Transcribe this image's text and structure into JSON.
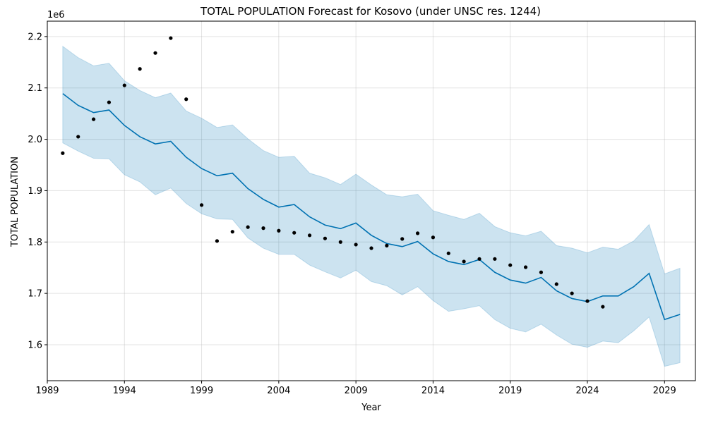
{
  "chart_data": {
    "type": "line",
    "title": "TOTAL POPULATION Forecast for Kosovo (under UNSC res. 1244)",
    "xlabel": "Year",
    "ylabel": "TOTAL POPULATION",
    "y_offset_label": "1e6",
    "xlim": [
      1989,
      2031
    ],
    "ylim": [
      1.53,
      2.23
    ],
    "x_ticks": [
      1989,
      1994,
      1999,
      2004,
      2009,
      2014,
      2019,
      2024,
      2029
    ],
    "x_tick_labels": [
      "1989",
      "1994",
      "1999",
      "2004",
      "2009",
      "2014",
      "2019",
      "2024",
      "2029"
    ],
    "y_ticks": [
      1.6,
      1.7,
      1.8,
      1.9,
      2.0,
      2.1,
      2.2
    ],
    "y_tick_labels": [
      "1.6",
      "1.7",
      "1.8",
      "1.9",
      "2.0",
      "2.1",
      "2.2"
    ],
    "grid": true,
    "colors": {
      "forecast": "#0072b2",
      "interval": "#0072b2",
      "observed": "#000000"
    },
    "series": [
      {
        "kind": "observed",
        "x": [
          1990,
          1991,
          1992,
          1993,
          1994,
          1995,
          1996,
          1997,
          1998,
          1999,
          2000,
          2001,
          2002,
          2003,
          2004,
          2005,
          2006,
          2007,
          2008,
          2009,
          2010,
          2011,
          2012,
          2013,
          2014,
          2015,
          2016,
          2017,
          2018,
          2019,
          2020,
          2021,
          2022,
          2023,
          2024,
          2025
        ],
        "y": [
          1.973,
          2.005,
          2.039,
          2.072,
          2.105,
          2.137,
          2.168,
          2.197,
          2.078,
          1.872,
          1.802,
          1.82,
          1.829,
          1.827,
          1.822,
          1.818,
          1.813,
          1.807,
          1.8,
          1.795,
          1.788,
          1.793,
          1.806,
          1.817,
          1.809,
          1.778,
          1.762,
          1.767,
          1.767,
          1.755,
          1.751,
          1.741,
          1.718,
          1.7,
          1.685,
          1.674
        ]
      },
      {
        "kind": "forecast",
        "x": [
          1990,
          1991,
          1992,
          1993,
          1994,
          1995,
          1996,
          1997,
          1998,
          1999,
          2000,
          2001,
          2002,
          2003,
          2004,
          2005,
          2006,
          2007,
          2008,
          2009,
          2010,
          2011,
          2012,
          2013,
          2014,
          2015,
          2016,
          2017,
          2018,
          2019,
          2020,
          2021,
          2022,
          2023,
          2024,
          2025,
          2026,
          2027,
          2028,
          2029,
          2030
        ],
        "y": [
          2.089,
          2.066,
          2.052,
          2.057,
          2.027,
          2.005,
          1.991,
          1.996,
          1.965,
          1.943,
          1.929,
          1.934,
          1.904,
          1.883,
          1.868,
          1.873,
          1.849,
          1.833,
          1.826,
          1.837,
          1.813,
          1.797,
          1.791,
          1.801,
          1.777,
          1.762,
          1.756,
          1.766,
          1.741,
          1.726,
          1.72,
          1.731,
          1.705,
          1.69,
          1.684,
          1.695,
          1.695,
          1.713,
          1.739,
          1.649,
          1.659
        ],
        "lower": [
          1.993,
          1.977,
          1.963,
          1.962,
          1.931,
          1.917,
          1.892,
          1.905,
          1.875,
          1.855,
          1.845,
          1.844,
          1.808,
          1.788,
          1.776,
          1.776,
          1.755,
          1.742,
          1.73,
          1.745,
          1.723,
          1.715,
          1.697,
          1.713,
          1.686,
          1.665,
          1.67,
          1.676,
          1.649,
          1.632,
          1.625,
          1.64,
          1.619,
          1.601,
          1.595,
          1.607,
          1.604,
          1.627,
          1.654,
          1.558,
          1.565
        ],
        "upper": [
          2.181,
          2.159,
          2.143,
          2.148,
          2.114,
          2.095,
          2.081,
          2.09,
          2.055,
          2.041,
          2.023,
          2.028,
          2.001,
          1.978,
          1.965,
          1.967,
          1.934,
          1.925,
          1.912,
          1.932,
          1.911,
          1.892,
          1.888,
          1.893,
          1.861,
          1.852,
          1.844,
          1.856,
          1.83,
          1.818,
          1.812,
          1.821,
          1.793,
          1.788,
          1.779,
          1.79,
          1.786,
          1.802,
          1.834,
          1.738,
          1.749
        ]
      }
    ]
  }
}
